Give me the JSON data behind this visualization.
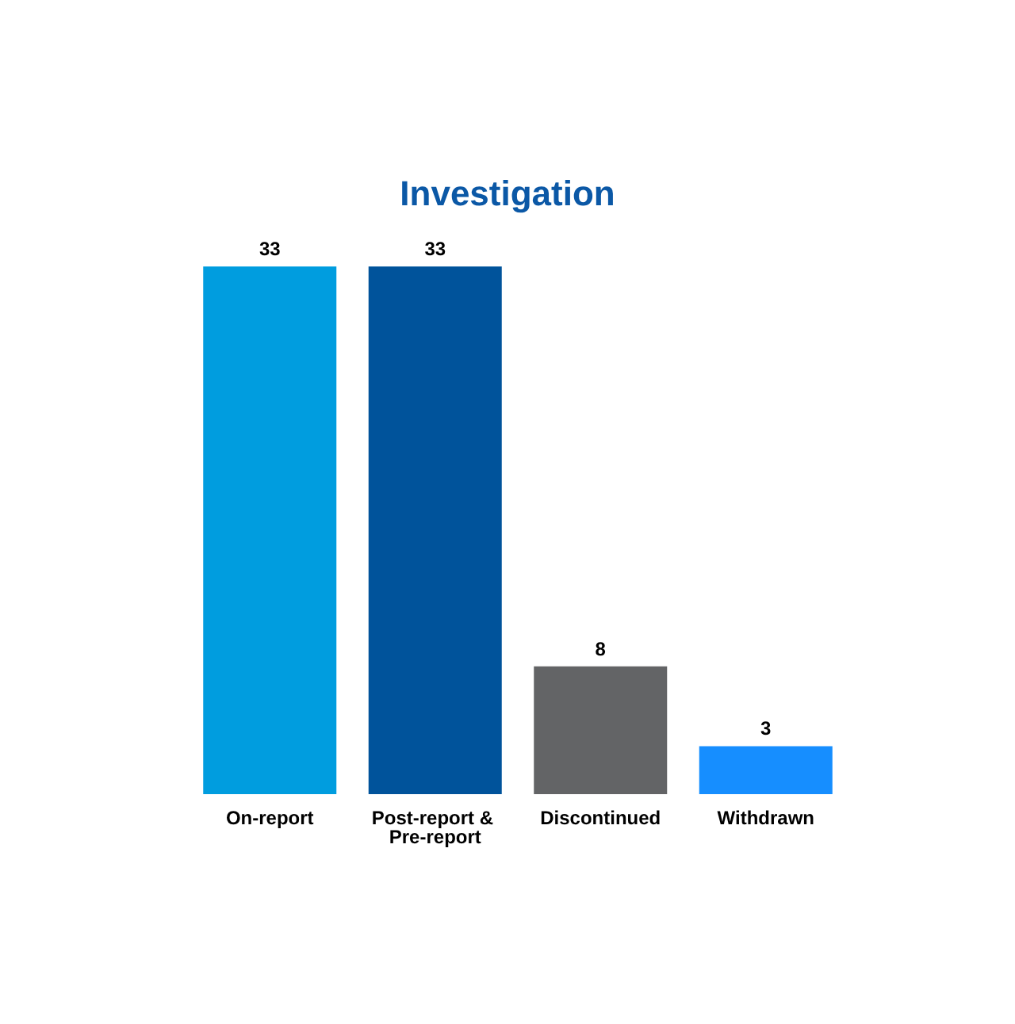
{
  "chart_data": {
    "type": "bar",
    "title": "Investigation",
    "categories": [
      "On-report",
      "Post-report & Pre-report",
      "Discontinued",
      "Withdrawn"
    ],
    "values": [
      33,
      33,
      8,
      3
    ],
    "colors": [
      "#009ddf",
      "#00539b",
      "#636466",
      "#168eff"
    ],
    "data_labels": true
  }
}
